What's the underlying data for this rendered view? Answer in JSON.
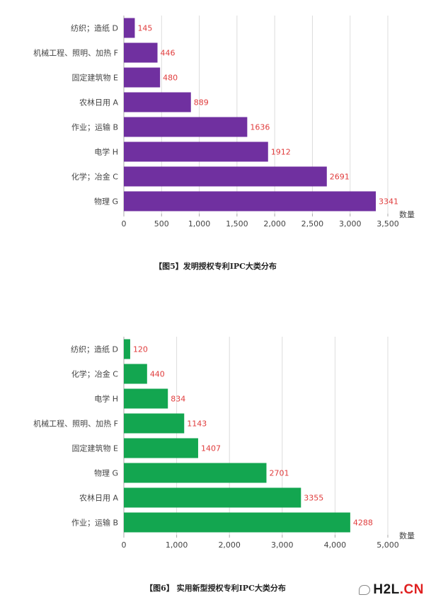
{
  "chart_data": [
    {
      "type": "bar",
      "orientation": "horizontal",
      "categories": [
        "纺织；造纸 D",
        "机械工程、照明、加热 F",
        "固定建筑物 E",
        "农林日用 A",
        "作业；运输 B",
        "电学 H",
        "化学；冶金 C",
        "物理 G"
      ],
      "values": [
        145,
        446,
        480,
        889,
        1636,
        1912,
        2691,
        3341
      ],
      "value_labels": [
        "145",
        "446",
        "480",
        "889",
        "1636",
        "1912",
        "2691",
        "3341"
      ],
      "xlabel": "数量",
      "xlim": [
        0,
        3500
      ],
      "xticks": [
        0,
        500,
        1000,
        1500,
        2000,
        2500,
        3000,
        3500
      ],
      "xtick_labels": [
        "0",
        "500",
        "1,000",
        "1,500",
        "2,000",
        "2,500",
        "3,000",
        "3,500"
      ],
      "bar_color": "#7030a0",
      "label_color": "#e03c3c",
      "grid": true,
      "caption": "【图5】发明授权专利IPC大类分布"
    },
    {
      "type": "bar",
      "orientation": "horizontal",
      "categories": [
        "纺织；造纸 D",
        "化学；冶金 C",
        "电学 H",
        "机械工程、照明、加热 F",
        "固定建筑物 E",
        "物理 G",
        "农林日用 A",
        "作业；运输 B"
      ],
      "values": [
        120,
        440,
        834,
        1143,
        1407,
        2701,
        3355,
        4288
      ],
      "value_labels": [
        "120",
        "440",
        "834",
        "1143",
        "1407",
        "2701",
        "3355",
        "4288"
      ],
      "xlabel": "数量",
      "xlim": [
        0,
        5000
      ],
      "xticks": [
        0,
        1000,
        2000,
        3000,
        4000,
        5000
      ],
      "xtick_labels": [
        "0",
        "1,000",
        "2,000",
        "3,000",
        "4,000",
        "5,000"
      ],
      "bar_color": "#13a650",
      "label_color": "#e03c3c",
      "grid": true,
      "caption": "【图6】 实用新型授权专利IPC大类分布"
    }
  ],
  "watermark": {
    "icon": "wechat-bubble-icon",
    "text_main": "H2L",
    "text_accent": ".CN"
  }
}
